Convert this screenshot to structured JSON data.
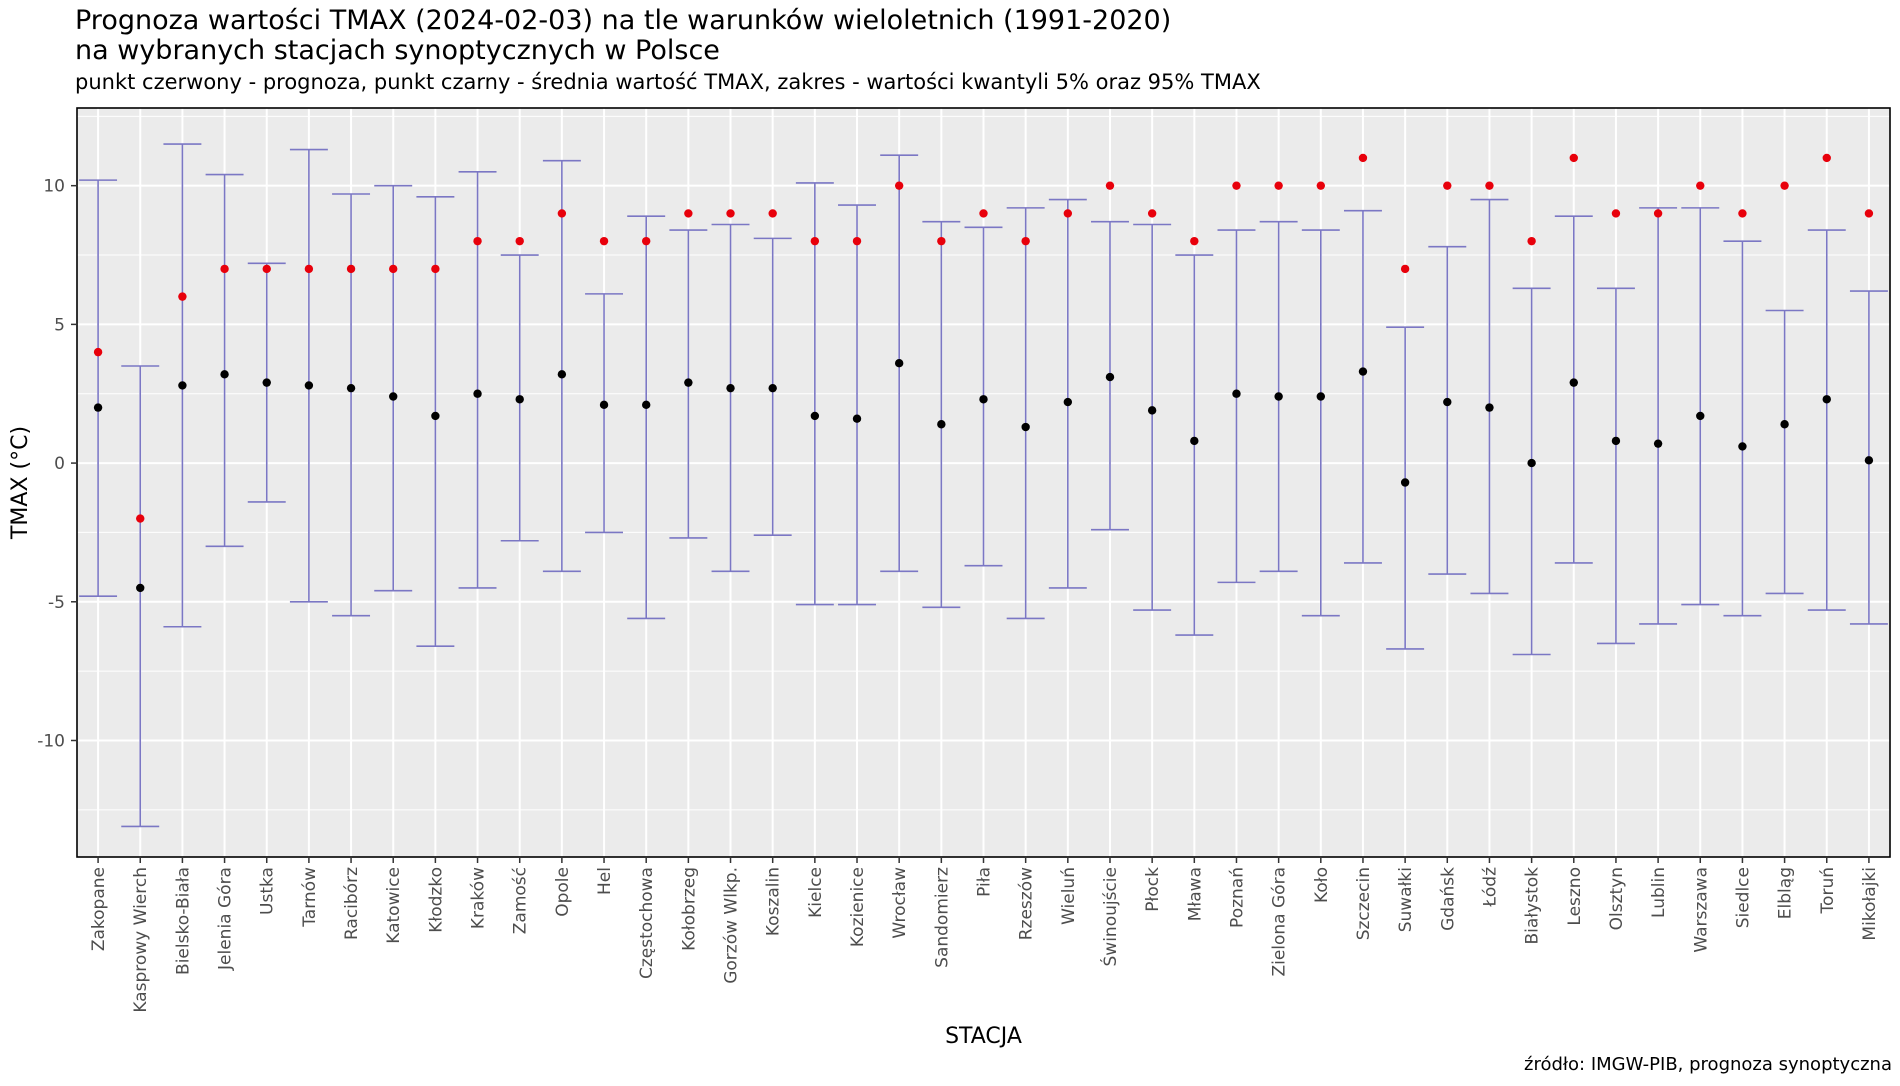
{
  "header": {
    "title_line1": "Prognoza wartości TMAX (2024-02-03) na tle warunków wieloletnich (1991-2020)",
    "title_line2": "na wybranych stacjach synoptycznych w Polsce",
    "subtitle": "punkt czerwony - prognoza, punkt czarny - średnia wartość TMAX, zakres - wartości kwantyli 5% oraz 95% TMAX"
  },
  "footer": {
    "source": "źródło: IMGW-PIB, prognoza synoptyczna"
  },
  "colors": {
    "panel_bg": "#ebebeb",
    "grid": "#ffffff",
    "range": "#7b77c4",
    "mean": "#000000",
    "forecast": "#e8000b"
  },
  "chart_data": {
    "type": "errorbar",
    "xlabel": "STACJA",
    "ylabel": "TMAX (°C)",
    "ylim": [
      -14.2,
      12.8
    ],
    "yticks": [
      -10,
      -5,
      0,
      5,
      10
    ],
    "grid": true,
    "categories": [
      "Zakopane",
      "Kasprowy Wierch",
      "Bielsko-Biała",
      "Jelenia Góra",
      "Ustka",
      "Tarnów",
      "Racibórz",
      "Katowice",
      "Kłodzko",
      "Kraków",
      "Zamość",
      "Opole",
      "Hel",
      "Częstochowa",
      "Kołobrzeg",
      "Gorzów Wlkp.",
      "Koszalin",
      "Kielce",
      "Kozienice",
      "Wrocław",
      "Sandomierz",
      "Piła",
      "Rzeszów",
      "Wieluń",
      "Świnoujście",
      "Płock",
      "Mława",
      "Poznań",
      "Zielona Góra",
      "Koło",
      "Szczecin",
      "Suwałki",
      "Gdańsk",
      "Łódź",
      "Białystok",
      "Leszno",
      "Olsztyn",
      "Lublin",
      "Warszawa",
      "Siedlce",
      "Elbląg",
      "Toruń",
      "Mikołajki"
    ],
    "series": [
      {
        "name": "kwantyl 5%",
        "values": [
          -4.8,
          -13.1,
          -5.9,
          -3.0,
          -1.4,
          -5.0,
          -5.5,
          -4.6,
          -6.6,
          -4.5,
          -2.8,
          -3.9,
          -2.5,
          -5.6,
          -2.7,
          -3.9,
          -2.6,
          -5.1,
          -5.1,
          -3.9,
          -5.2,
          -3.7,
          -5.6,
          -4.5,
          -2.4,
          -5.3,
          -6.2,
          -4.3,
          -3.9,
          -5.5,
          -3.6,
          -6.7,
          -4.0,
          -4.7,
          -6.9,
          -3.6,
          -6.5,
          -5.8,
          -5.1,
          -5.5,
          -4.7,
          -5.3,
          -5.8
        ]
      },
      {
        "name": "kwantyl 95%",
        "values": [
          10.2,
          3.5,
          11.5,
          10.4,
          7.2,
          11.3,
          9.7,
          10.0,
          9.6,
          10.5,
          7.5,
          10.9,
          6.1,
          8.9,
          8.4,
          8.6,
          8.1,
          10.1,
          9.3,
          11.1,
          8.7,
          8.5,
          9.2,
          9.5,
          8.7,
          8.6,
          7.5,
          8.4,
          8.7,
          8.4,
          9.1,
          4.9,
          7.8,
          9.5,
          6.3,
          8.9,
          6.3,
          9.2,
          9.2,
          8.0,
          5.5,
          8.4,
          6.2
        ]
      },
      {
        "name": "średnia",
        "values": [
          2.0,
          -4.5,
          2.8,
          3.2,
          2.9,
          2.8,
          2.7,
          2.4,
          1.7,
          2.5,
          2.3,
          3.2,
          2.1,
          2.1,
          2.9,
          2.7,
          2.7,
          1.7,
          1.6,
          3.6,
          1.4,
          2.3,
          1.3,
          2.2,
          3.1,
          1.9,
          0.8,
          2.5,
          2.4,
          2.4,
          3.3,
          -0.7,
          2.2,
          2.0,
          0.0,
          2.9,
          0.8,
          0.7,
          1.7,
          0.6,
          1.4,
          2.3,
          0.1
        ]
      },
      {
        "name": "prognoza",
        "values": [
          4,
          -2,
          6,
          7,
          7,
          7,
          7,
          7,
          7,
          8,
          8,
          9,
          8,
          8,
          9,
          9,
          9,
          8,
          8,
          10,
          8,
          9,
          8,
          9,
          10,
          9,
          8,
          10,
          10,
          10,
          11,
          7,
          10,
          10,
          8,
          11,
          9,
          9,
          10,
          9,
          10,
          11,
          9
        ]
      }
    ]
  }
}
